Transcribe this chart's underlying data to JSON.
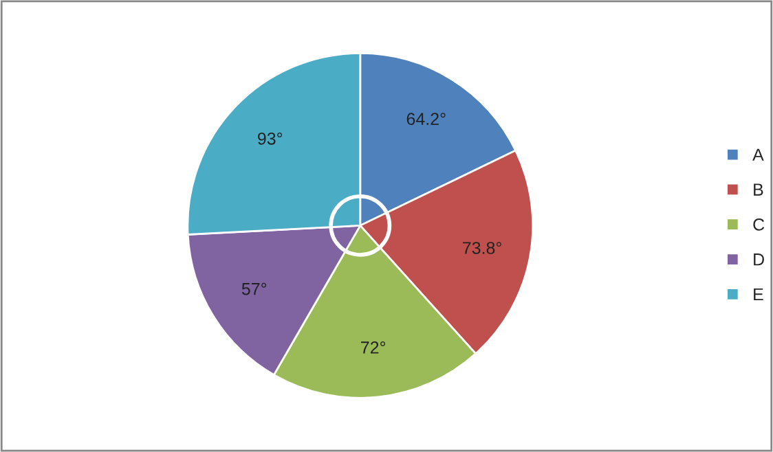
{
  "chart_data": {
    "type": "pie",
    "categories": [
      "A",
      "B",
      "C",
      "D",
      "E"
    ],
    "values": [
      64.2,
      73.8,
      72,
      57,
      93
    ],
    "value_labels": [
      "64.2°",
      "73.8°",
      "72°",
      "57°",
      "93°"
    ],
    "colors": [
      "#4f81bd",
      "#c0504d",
      "#9bbb59",
      "#8064a2",
      "#4bacc6"
    ],
    "legend": "right"
  }
}
